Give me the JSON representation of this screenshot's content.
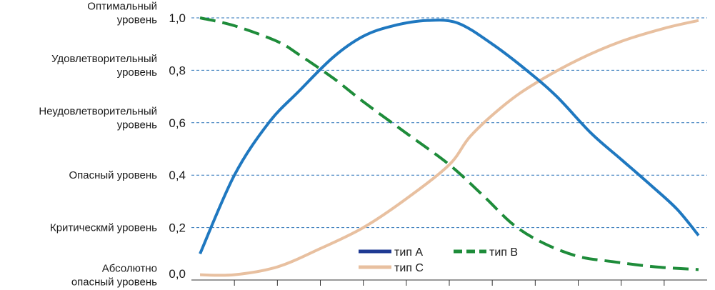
{
  "chart_data": {
    "type": "line",
    "title": "",
    "xlabel": "",
    "ylabel": "",
    "ylim": [
      0,
      1
    ],
    "xlim": [
      0,
      12
    ],
    "yticks": [
      "0,0",
      "0,2",
      "0,4",
      "0,6",
      "0,8",
      "1,0"
    ],
    "level_labels": [
      {
        "y": 0.0,
        "lines": [
          "Абсолютно",
          "опасный уровень"
        ]
      },
      {
        "y": 0.2,
        "lines": [
          "Критическмй уровень"
        ]
      },
      {
        "y": 0.4,
        "lines": [
          "Опасный уровень"
        ]
      },
      {
        "y": 0.6,
        "lines": [
          "Неудовлетворительный",
          "уровень"
        ]
      },
      {
        "y": 0.8,
        "lines": [
          "Удовлетворительный",
          "уровень"
        ]
      },
      {
        "y": 1.0,
        "lines": [
          "Оптимальный",
          "уровень"
        ]
      }
    ],
    "grid": {
      "horizontal": true,
      "style": "dashed"
    },
    "legend": {
      "placement": "bottom-center",
      "entries": [
        {
          "label": "тип A",
          "color": "#1f3a93",
          "style": "solid"
        },
        {
          "label": "тип B",
          "color": "#1e8c3a",
          "style": "dashed"
        },
        {
          "label": "тип C",
          "color": "#e8c0a0",
          "style": "solid"
        }
      ]
    },
    "series": [
      {
        "name": "тип A",
        "color": "#1f78c0",
        "style": "solid",
        "points": [
          [
            0.2,
            0.1
          ],
          [
            1.0,
            0.4
          ],
          [
            1.8,
            0.6
          ],
          [
            2.5,
            0.72
          ],
          [
            3.3,
            0.85
          ],
          [
            4.0,
            0.93
          ],
          [
            4.7,
            0.97
          ],
          [
            5.5,
            0.99
          ],
          [
            6.2,
            0.98
          ],
          [
            7.0,
            0.9
          ],
          [
            7.8,
            0.8
          ],
          [
            8.5,
            0.7
          ],
          [
            9.3,
            0.56
          ],
          [
            10.0,
            0.46
          ],
          [
            10.7,
            0.36
          ],
          [
            11.3,
            0.27
          ],
          [
            11.8,
            0.17
          ]
        ]
      },
      {
        "name": "тип B",
        "color": "#1e8c3a",
        "style": "dashed",
        "points": [
          [
            0.2,
            1.0
          ],
          [
            1.0,
            0.97
          ],
          [
            2.0,
            0.91
          ],
          [
            2.5,
            0.86
          ],
          [
            3.3,
            0.77
          ],
          [
            4.0,
            0.68
          ],
          [
            5.0,
            0.56
          ],
          [
            6.0,
            0.44
          ],
          [
            6.8,
            0.32
          ],
          [
            7.5,
            0.21
          ],
          [
            8.2,
            0.14
          ],
          [
            9.0,
            0.09
          ],
          [
            9.8,
            0.07
          ],
          [
            10.8,
            0.05
          ],
          [
            11.8,
            0.04
          ]
        ]
      },
      {
        "name": "тип C",
        "color": "#e8c0a0",
        "style": "solid",
        "points": [
          [
            0.2,
            0.02
          ],
          [
            1.0,
            0.02
          ],
          [
            2.0,
            0.05
          ],
          [
            3.0,
            0.12
          ],
          [
            4.0,
            0.2
          ],
          [
            5.0,
            0.31
          ],
          [
            6.0,
            0.44
          ],
          [
            6.5,
            0.55
          ],
          [
            7.3,
            0.67
          ],
          [
            8.0,
            0.75
          ],
          [
            9.0,
            0.84
          ],
          [
            10.0,
            0.91
          ],
          [
            11.0,
            0.96
          ],
          [
            11.8,
            0.99
          ]
        ]
      }
    ]
  }
}
